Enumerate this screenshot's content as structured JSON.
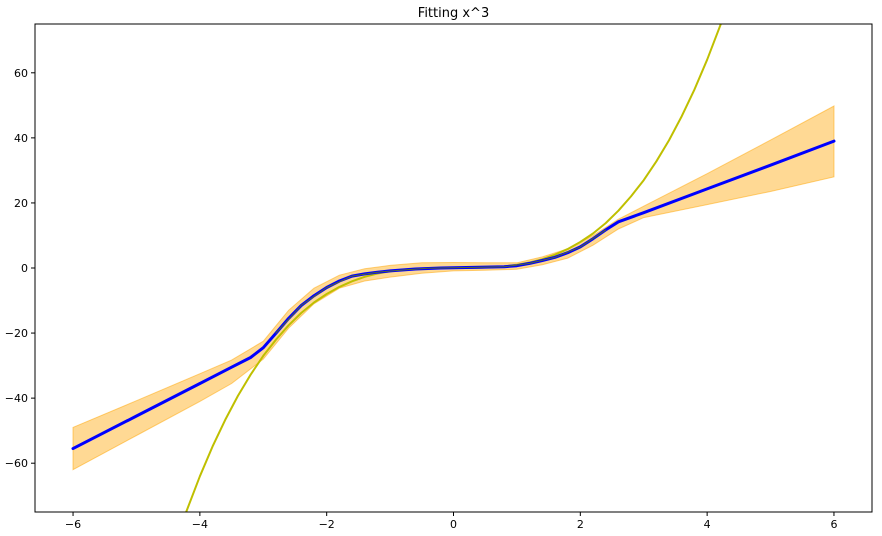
{
  "chart_data": {
    "type": "line",
    "title": "Fitting x^3",
    "xlabel": "",
    "ylabel": "",
    "xlim": [
      -6.6,
      6.6
    ],
    "ylim": [
      -75,
      75
    ],
    "xticks": [
      -6,
      -4,
      -2,
      0,
      2,
      4,
      6
    ],
    "yticks": [
      -60,
      -40,
      -20,
      0,
      20,
      40,
      60
    ],
    "xtick_labels": [
      "−6",
      "−4",
      "−2",
      "0",
      "2",
      "4",
      "6"
    ],
    "ytick_labels": [
      "−60",
      "−40",
      "−20",
      "0",
      "20",
      "40",
      "60"
    ],
    "grid": false,
    "legend": "none",
    "series": [
      {
        "role": "true-function",
        "color": "#bfbf00",
        "x": [
          -4.22,
          -4.0,
          -3.8,
          -3.6,
          -3.4,
          -3.2,
          -3.0,
          -2.8,
          -2.6,
          -2.4,
          -2.2,
          -2.0,
          -1.8,
          -1.6,
          -1.4,
          -1.2,
          -1.0,
          -0.8,
          -0.6,
          -0.4,
          -0.2,
          0.0,
          0.2,
          0.4,
          0.6,
          0.8,
          1.0,
          1.2,
          1.4,
          1.6,
          1.8,
          2.0,
          2.2,
          2.4,
          2.6,
          2.8,
          3.0,
          3.2,
          3.4,
          3.6,
          3.8,
          4.0,
          4.22
        ],
        "y": [
          -75.2,
          -64.0,
          -54.9,
          -46.7,
          -39.3,
          -32.8,
          -27.0,
          -22.0,
          -17.6,
          -13.8,
          -10.6,
          -8.0,
          -5.8,
          -4.1,
          -2.7,
          -1.7,
          -1.0,
          -0.5,
          -0.2,
          -0.1,
          0.0,
          0.0,
          0.0,
          0.1,
          0.2,
          0.5,
          1.0,
          1.7,
          2.7,
          4.1,
          5.8,
          8.0,
          10.6,
          13.8,
          17.6,
          22.0,
          27.0,
          32.8,
          39.3,
          46.7,
          54.9,
          64.0,
          75.2
        ]
      },
      {
        "role": "prediction-mean",
        "color": "#0000ff",
        "x": [
          -6.0,
          -5.0,
          -4.0,
          -3.5,
          -3.2,
          -3.0,
          -2.8,
          -2.6,
          -2.4,
          -2.2,
          -2.0,
          -1.8,
          -1.6,
          -1.4,
          -1.2,
          -1.0,
          -0.6,
          -0.2,
          0.0,
          0.4,
          0.8,
          1.0,
          1.2,
          1.4,
          1.6,
          1.8,
          2.0,
          2.2,
          2.4,
          2.6,
          3.0,
          4.0,
          5.0,
          6.0
        ],
        "y": [
          -55.5,
          -45.5,
          -35.5,
          -30.5,
          -27.5,
          -24.5,
          -20.0,
          -15.5,
          -11.5,
          -8.5,
          -6.0,
          -4.0,
          -2.5,
          -1.8,
          -1.3,
          -0.9,
          -0.3,
          0.0,
          0.1,
          0.2,
          0.4,
          0.7,
          1.4,
          2.3,
          3.3,
          4.7,
          6.5,
          9.0,
          11.7,
          14.2,
          17.0,
          24.3,
          31.6,
          39.0
        ]
      },
      {
        "role": "fit-underlay",
        "color": "#556b2f",
        "x": [
          -2.8,
          -2.4,
          -2.0,
          -1.6,
          -1.2,
          -0.8,
          -0.4,
          0.0,
          0.4,
          0.8,
          1.2,
          1.6,
          2.0,
          2.4
        ],
        "y": [
          -20.0,
          -11.5,
          -6.0,
          -2.5,
          -1.3,
          -0.6,
          -0.1,
          0.1,
          0.2,
          0.4,
          1.4,
          3.3,
          6.5,
          11.7
        ]
      }
    ],
    "band": {
      "role": "confidence-interval",
      "color": "#ffa500",
      "x": [
        -6.0,
        -5.0,
        -4.0,
        -3.5,
        -3.0,
        -2.6,
        -2.2,
        -1.8,
        -1.4,
        -1.0,
        -0.5,
        0.0,
        0.5,
        1.0,
        1.4,
        1.8,
        2.2,
        2.6,
        3.0,
        4.0,
        5.0,
        6.0
      ],
      "upper": [
        -49.0,
        -40.8,
        -32.5,
        -28.3,
        -22.5,
        -13.0,
        -6.2,
        -2.2,
        -0.2,
        0.8,
        1.6,
        1.7,
        1.6,
        1.6,
        3.4,
        5.9,
        10.0,
        15.0,
        19.0,
        29.0,
        39.3,
        49.8
      ],
      "lower": [
        -62.0,
        -51.5,
        -41.0,
        -35.5,
        -28.0,
        -18.5,
        -11.0,
        -6.2,
        -4.0,
        -2.8,
        -1.6,
        -0.9,
        -0.7,
        -0.4,
        1.0,
        3.0,
        7.0,
        12.0,
        15.5,
        19.5,
        23.5,
        28.0
      ]
    }
  }
}
